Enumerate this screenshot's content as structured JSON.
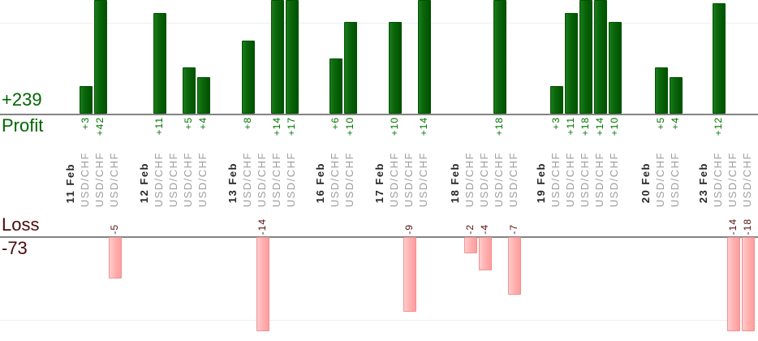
{
  "summary": {
    "profit_total": "+239",
    "profit_label": "Profit",
    "loss_label": "Loss",
    "loss_total": "-73"
  },
  "colors": {
    "profit_text": "#006600",
    "profit_value_text": "#007300",
    "loss_text": "#4a0b0b",
    "loss_value_text": "#551010",
    "profit_bar_gradient": "linear-gradient(90deg,#1b7c1b 0%,#0a660a 40%,#015201 100%)",
    "loss_bar_gradient": "linear-gradient(90deg,#ffcdcd 0%,#ffb2b2 45%,#ff9d9d 100%)",
    "date_text": "#262626",
    "symbol_text": "#9e9e9e",
    "axis_line": "#848484",
    "grid_line": "#efefef"
  },
  "chart_data": {
    "type": "bar",
    "panels": [
      {
        "id": "profit",
        "label": "Profit",
        "total": 239,
        "total_text": "+239",
        "gridline_value": 10
      },
      {
        "id": "loss",
        "label": "Loss",
        "total": -73,
        "total_text": "-73",
        "gridline_value": -10
      }
    ],
    "legend": "none",
    "x_label_style": "rotated-90",
    "groups": [
      {
        "date": "11 Feb",
        "trades": [
          {
            "symbol": "USD/CHF",
            "pnl": 3
          },
          {
            "symbol": "USD/CHF",
            "pnl": 42
          },
          {
            "symbol": "USD/CHF",
            "pnl": -5
          }
        ]
      },
      {
        "date": "12 Feb",
        "trades": [
          {
            "symbol": "USD/CHF",
            "pnl": 11
          },
          {
            "symbol": "USD/CHF",
            "pnl": 0
          },
          {
            "symbol": "USD/CHF",
            "pnl": 5
          },
          {
            "symbol": "USD/CHF",
            "pnl": 4
          }
        ]
      },
      {
        "date": "13 Feb",
        "trades": [
          {
            "symbol": "USD/CHF",
            "pnl": 8
          },
          {
            "symbol": "USD/CHF",
            "pnl": -14
          },
          {
            "symbol": "USD/CHF",
            "pnl": 14
          },
          {
            "symbol": "USD/CHF",
            "pnl": 17
          }
        ]
      },
      {
        "date": "16 Feb",
        "trades": [
          {
            "symbol": "USD/CHF",
            "pnl": 6
          },
          {
            "symbol": "USD/CHF",
            "pnl": 10
          }
        ]
      },
      {
        "date": "17 Feb",
        "trades": [
          {
            "symbol": "USD/CHF",
            "pnl": 10
          },
          {
            "symbol": "USD/CHF",
            "pnl": -9
          },
          {
            "symbol": "USD/CHF",
            "pnl": 14
          }
        ]
      },
      {
        "date": "18 Feb",
        "trades": [
          {
            "symbol": "USD/CHF",
            "pnl": -2
          },
          {
            "symbol": "USD/CHF",
            "pnl": -4
          },
          {
            "symbol": "USD/CHF",
            "pnl": 18
          },
          {
            "symbol": "USD/CHF",
            "pnl": -7
          }
        ]
      },
      {
        "date": "19 Feb",
        "trades": [
          {
            "symbol": "USD/CHF",
            "pnl": 3
          },
          {
            "symbol": "USD/CHF",
            "pnl": 11
          },
          {
            "symbol": "USD/CHF",
            "pnl": 18
          },
          {
            "symbol": "USD/CHF",
            "pnl": 14
          },
          {
            "symbol": "USD/CHF",
            "pnl": 10
          }
        ]
      },
      {
        "date": "20 Feb",
        "trades": [
          {
            "symbol": "USD/CHF",
            "pnl": 5
          },
          {
            "symbol": "USD/CHF",
            "pnl": 4
          }
        ]
      },
      {
        "date": "23 Feb",
        "trades": [
          {
            "symbol": "USD/CHF",
            "pnl": 12
          },
          {
            "symbol": "USD/CHF",
            "pnl": -14
          },
          {
            "symbol": "USD/CHF",
            "pnl": -18
          }
        ]
      }
    ]
  }
}
